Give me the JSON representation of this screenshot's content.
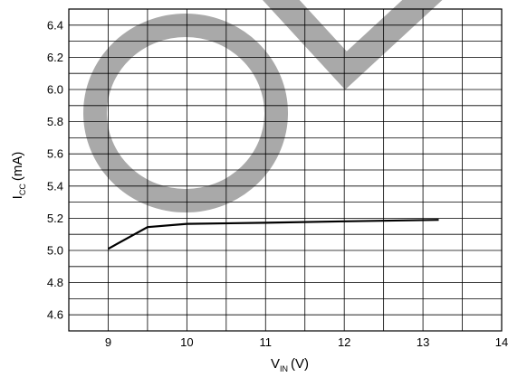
{
  "chart_data": {
    "type": "line",
    "title": "",
    "xlabel": {
      "main": "V",
      "sub": "IN",
      "unit": "(V)"
    },
    "ylabel": {
      "main": "I",
      "sub": "CC",
      "unit": "(mA)"
    },
    "xlim": [
      8.5,
      14
    ],
    "ylim": [
      4.5,
      6.5
    ],
    "x_ticks": [
      9,
      10,
      11,
      12,
      13,
      14
    ],
    "x_tick_labels": [
      "9",
      "10",
      "11",
      "12",
      "13",
      "14"
    ],
    "y_ticks": [
      4.6,
      4.8,
      5.0,
      5.2,
      5.4,
      5.6,
      5.8,
      6.0,
      6.2,
      6.4
    ],
    "y_tick_labels": [
      "4.6",
      "4.8",
      "5.0",
      "5.2",
      "5.4",
      "5.6",
      "5.8",
      "6.0",
      "6.2",
      "6.4"
    ],
    "grid": true,
    "series": [
      {
        "color": "#000000",
        "x": [
          9.0,
          9.5,
          10.0,
          11.0,
          12.0,
          13.2
        ],
        "y": [
          5.01,
          5.145,
          5.165,
          5.172,
          5.181,
          5.19
        ]
      }
    ],
    "watermark": {
      "shape": "check-mark",
      "color": "#a9a9a9"
    }
  }
}
